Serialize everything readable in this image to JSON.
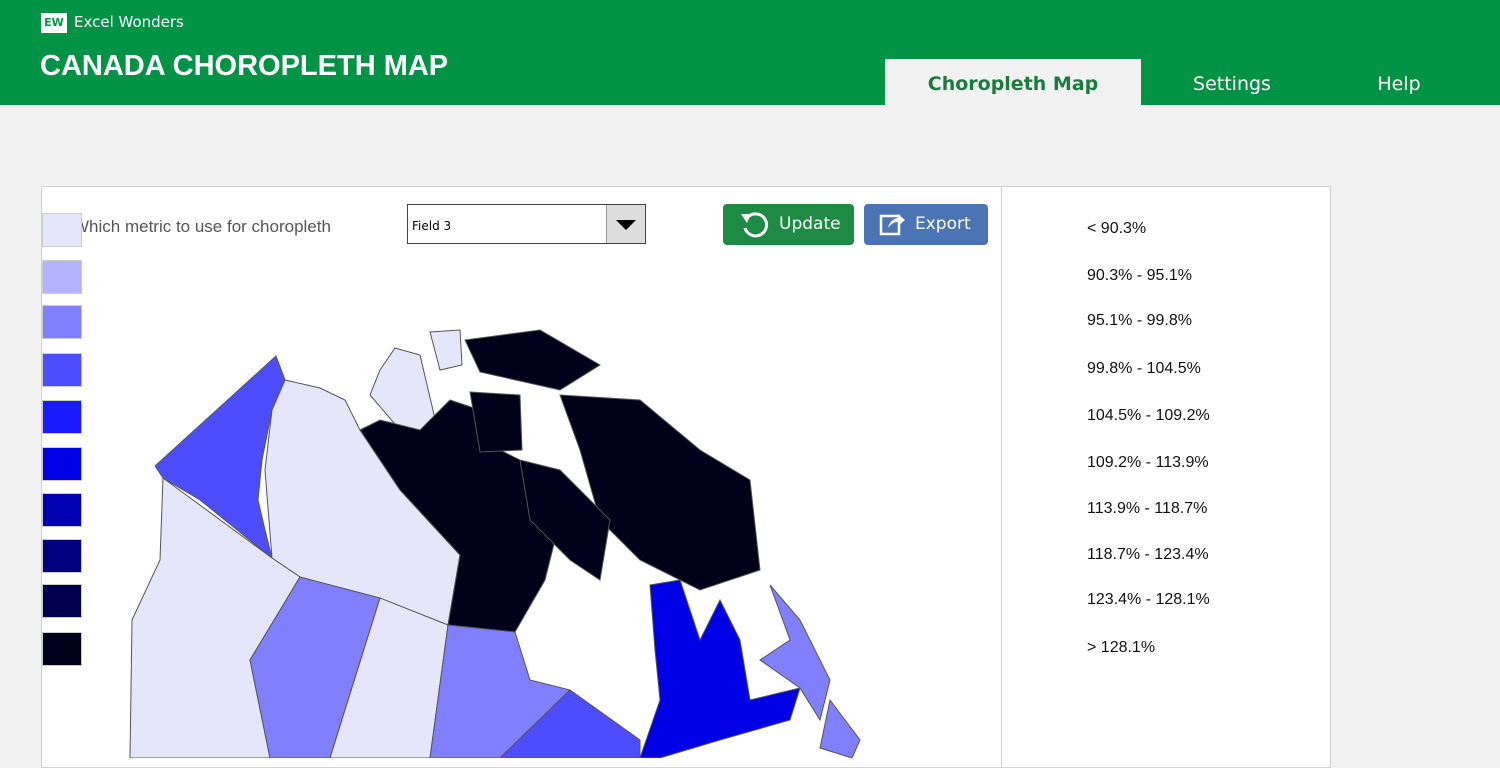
{
  "header": {
    "logo": "EW",
    "brand": "Excel Wonders",
    "title": "CANADA CHOROPLETH MAP"
  },
  "tabs": [
    "Choropleth Map",
    "Settings",
    "Help"
  ],
  "controls": {
    "label": "Which metric to use for choropleth",
    "dropdown": "Field 3",
    "update": "Update",
    "export": "Export"
  },
  "legend": [
    {
      "label": "< 90.3%",
      "color": "#e6e6fa"
    },
    {
      "label": "90.3% - 95.1%",
      "color": "#b3b3ff"
    },
    {
      "label": "95.1% - 99.8%",
      "color": "#8080ff"
    },
    {
      "label": "99.8% - 104.5%",
      "color": "#4d4dff"
    },
    {
      "label": "104.5% - 109.2%",
      "color": "#1a1aff"
    },
    {
      "label": "109.2% - 113.9%",
      "color": "#0000e6"
    },
    {
      "label": "113.9% - 118.7%",
      "color": "#0000b3"
    },
    {
      "label": "118.7% - 123.4%",
      "color": "#000080"
    },
    {
      "label": "123.4% - 128.1%",
      "color": "#00004d"
    },
    {
      "label": "> 128.1%",
      "color": "#00001a"
    }
  ]
}
